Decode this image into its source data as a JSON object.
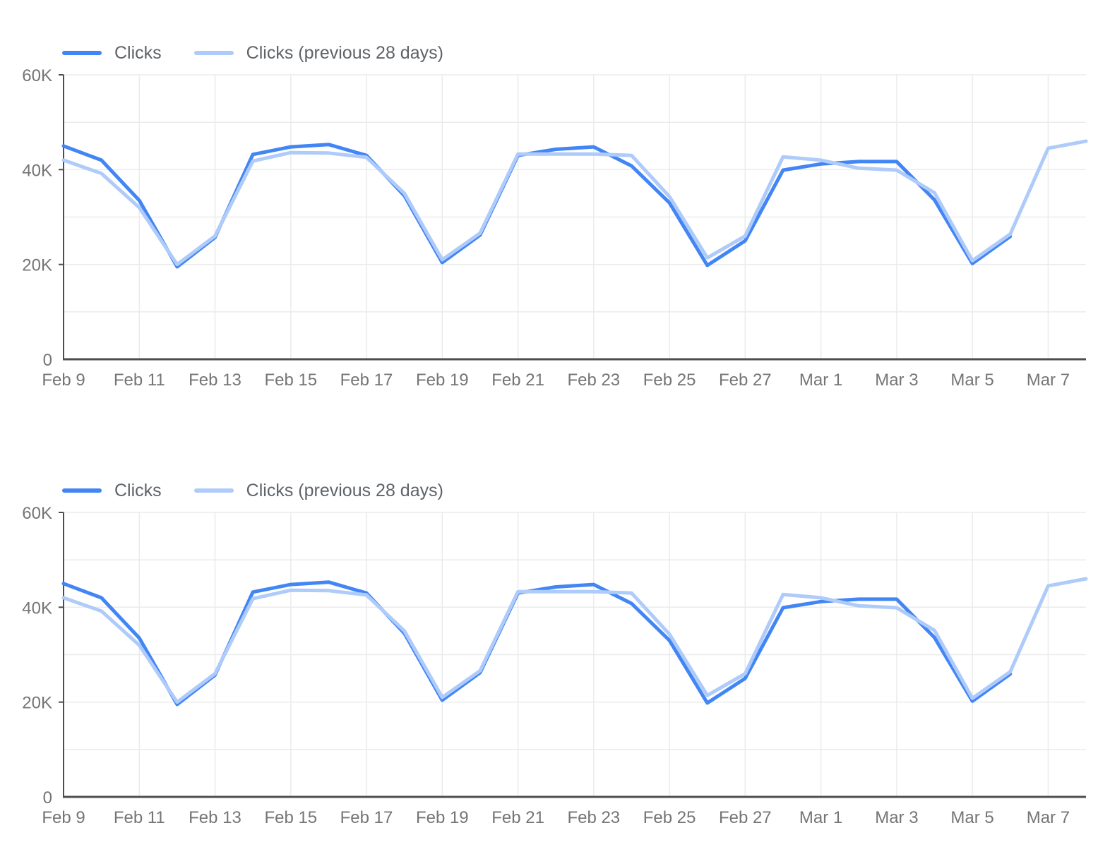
{
  "style": {
    "background": "#ffffff",
    "axis_color": "#4d4d4d",
    "grid_color": "#ebebeb",
    "tick_label_color": "#757575",
    "legend_text_color": "#5f6368",
    "series_current_color": "#4285f4",
    "series_previous_color": "#aecbfa"
  },
  "chart_data": [
    {
      "type": "line",
      "title": "",
      "xlabel": "",
      "ylabel": "",
      "grid": true,
      "legend_position": "top-left",
      "ylim": [
        0,
        60000
      ],
      "y_tick_values": [
        0,
        20000,
        40000,
        60000
      ],
      "y_tick_labels": [
        "0",
        "20K",
        "40K",
        "60K"
      ],
      "y_gridline_step": 10000,
      "x": [
        "Feb 9",
        "Feb 10",
        "Feb 11",
        "Feb 12",
        "Feb 13",
        "Feb 14",
        "Feb 15",
        "Feb 16",
        "Feb 17",
        "Feb 18",
        "Feb 19",
        "Feb 20",
        "Feb 21",
        "Feb 22",
        "Feb 23",
        "Feb 24",
        "Feb 25",
        "Feb 26",
        "Feb 27",
        "Feb 28",
        "Mar 1",
        "Mar 2",
        "Mar 3",
        "Mar 4",
        "Mar 5",
        "Mar 6",
        "Mar 7",
        "Mar 8"
      ],
      "tick_indices": [
        0,
        2,
        4,
        6,
        8,
        10,
        12,
        14,
        16,
        18,
        20,
        22,
        24,
        26
      ],
      "x_tick_labels": [
        "Feb 9",
        "Feb 11",
        "Feb 13",
        "Feb 15",
        "Feb 17",
        "Feb 19",
        "Feb 21",
        "Feb 23",
        "Feb 25",
        "Feb 27",
        "Mar 1",
        "Mar 3",
        "Mar 5",
        "Mar 7"
      ],
      "series": [
        {
          "name": "Clicks",
          "color": "#4285f4",
          "values": [
            45000,
            42000,
            33500,
            19500,
            25700,
            43200,
            44800,
            45300,
            43000,
            34500,
            20400,
            26200,
            43000,
            44300,
            44800,
            40800,
            33000,
            19800,
            25000,
            39900,
            41200,
            41700,
            41700,
            33600,
            20200,
            25900,
            null,
            null
          ]
        },
        {
          "name": "Clicks (previous 28 days)",
          "color": "#aecbfa",
          "values": [
            42000,
            39200,
            32000,
            20000,
            26000,
            41800,
            43600,
            43500,
            42600,
            35000,
            21000,
            26600,
            43300,
            43300,
            43300,
            43000,
            34300,
            21400,
            26000,
            42700,
            42000,
            40300,
            39900,
            35100,
            20800,
            26400,
            44500,
            46000
          ]
        }
      ]
    },
    {
      "type": "line",
      "title": "",
      "xlabel": "",
      "ylabel": "",
      "grid": true,
      "legend_position": "top-left",
      "ylim": [
        0,
        60000
      ],
      "y_tick_values": [
        0,
        20000,
        40000,
        60000
      ],
      "y_tick_labels": [
        "0",
        "20K",
        "40K",
        "60K"
      ],
      "y_gridline_step": 10000,
      "x": [
        "Feb 9",
        "Feb 10",
        "Feb 11",
        "Feb 12",
        "Feb 13",
        "Feb 14",
        "Feb 15",
        "Feb 16",
        "Feb 17",
        "Feb 18",
        "Feb 19",
        "Feb 20",
        "Feb 21",
        "Feb 22",
        "Feb 23",
        "Feb 24",
        "Feb 25",
        "Feb 26",
        "Feb 27",
        "Feb 28",
        "Mar 1",
        "Mar 2",
        "Mar 3",
        "Mar 4",
        "Mar 5",
        "Mar 6",
        "Mar 7",
        "Mar 8"
      ],
      "tick_indices": [
        0,
        2,
        4,
        6,
        8,
        10,
        12,
        14,
        16,
        18,
        20,
        22,
        24,
        26
      ],
      "x_tick_labels": [
        "Feb 9",
        "Feb 11",
        "Feb 13",
        "Feb 15",
        "Feb 17",
        "Feb 19",
        "Feb 21",
        "Feb 23",
        "Feb 25",
        "Feb 27",
        "Mar 1",
        "Mar 3",
        "Mar 5",
        "Mar 7"
      ],
      "series": [
        {
          "name": "Clicks",
          "color": "#4285f4",
          "values": [
            45000,
            42000,
            33500,
            19500,
            25700,
            43200,
            44800,
            45300,
            43000,
            34500,
            20400,
            26200,
            43000,
            44300,
            44800,
            40800,
            33000,
            19800,
            25000,
            39900,
            41200,
            41700,
            41700,
            33600,
            20200,
            25900,
            null,
            null
          ]
        },
        {
          "name": "Clicks (previous 28 days)",
          "color": "#aecbfa",
          "values": [
            42000,
            39200,
            32000,
            20000,
            26000,
            41800,
            43600,
            43500,
            42600,
            35000,
            21000,
            26600,
            43300,
            43300,
            43300,
            43000,
            34300,
            21400,
            26000,
            42700,
            42000,
            40300,
            39900,
            35100,
            20800,
            26400,
            44500,
            46000
          ]
        }
      ]
    }
  ]
}
